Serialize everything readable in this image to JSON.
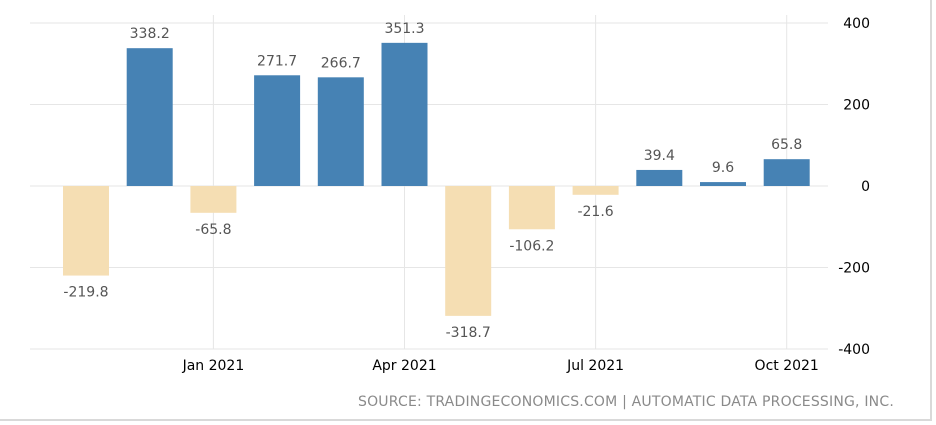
{
  "chart_data": {
    "type": "bar",
    "categories": [
      "2020-11",
      "2020-12",
      "2021-01",
      "2021-02",
      "2021-03",
      "2021-04",
      "2021-05",
      "2021-06",
      "2021-07",
      "2021-08",
      "2021-09",
      "2021-10"
    ],
    "values": [
      -219.8,
      338.2,
      -65.8,
      271.7,
      266.7,
      351.3,
      -318.7,
      -106.2,
      -21.6,
      39.4,
      9.6,
      65.8
    ],
    "value_labels": [
      "-219.8",
      "338.2",
      "-65.8",
      "271.7",
      "266.7",
      "351.3",
      "-318.7",
      "-106.2",
      "-21.6",
      "39.4",
      "9.6",
      "65.8"
    ],
    "x_ticks": [
      {
        "label": "Jan 2021",
        "category": "2021-01"
      },
      {
        "label": "Apr 2021",
        "category": "2021-04"
      },
      {
        "label": "Jul 2021",
        "category": "2021-07"
      },
      {
        "label": "Oct 2021",
        "category": "2021-10"
      }
    ],
    "y_ticks": [
      400,
      200,
      0,
      -200,
      -400
    ],
    "ylim": [
      -400,
      400
    ],
    "grid": true,
    "y_axis_side": "right",
    "title": "",
    "xlabel": "",
    "ylabel": "",
    "colors": {
      "positive": "#4682b4",
      "negative": "#f5deb3",
      "grid": "#e6e6e6",
      "axis_text": "#000000",
      "label_text": "#555555"
    }
  },
  "source_text": "SOURCE: TRADINGECONOMICS.COM | AUTOMATIC DATA PROCESSING, INC."
}
